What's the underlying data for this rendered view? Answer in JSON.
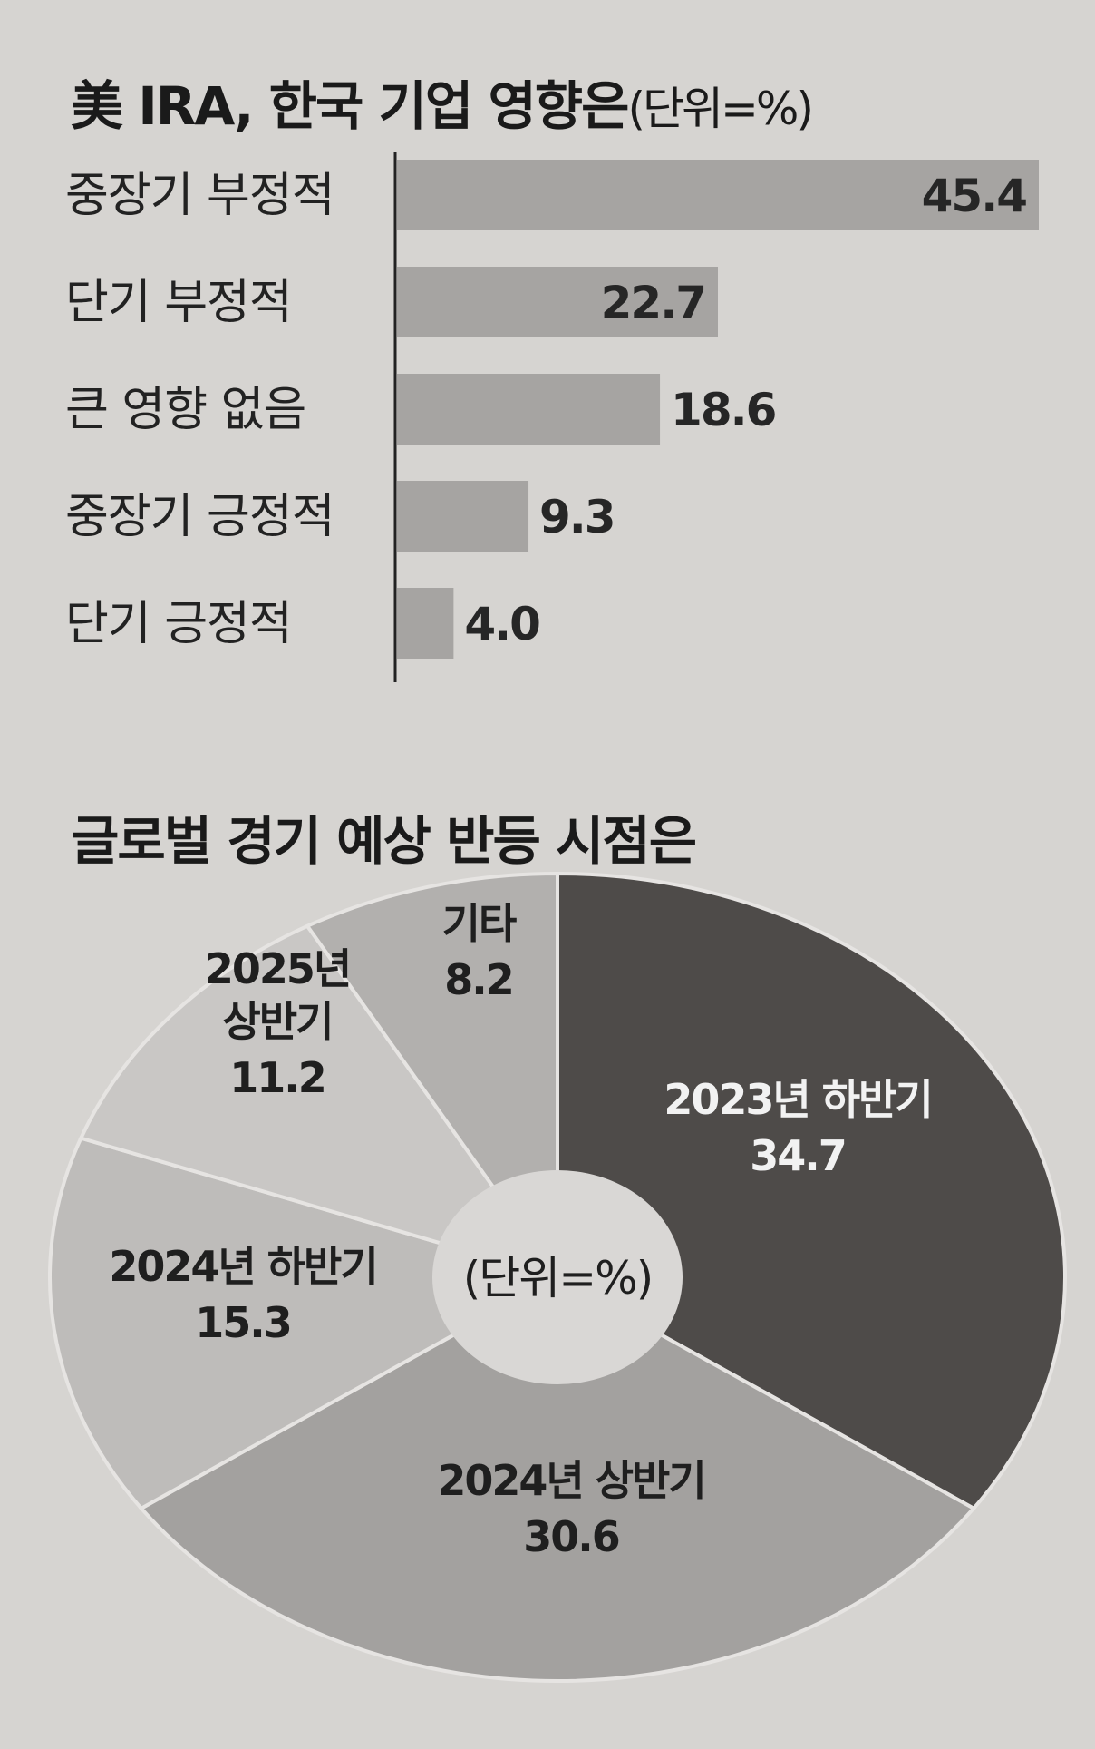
{
  "chart_data": [
    {
      "type": "bar",
      "orientation": "horizontal",
      "title": "美 IRA, 한국 기업 영향은",
      "unit_label": "(단위=%)",
      "categories": [
        "중장기 부정적",
        "단기 부정적",
        "큰 영향 없음",
        "중장기 긍정적",
        "단기 긍정적"
      ],
      "values": [
        45.4,
        22.7,
        18.6,
        9.3,
        4.0
      ],
      "value_labels": [
        "45.4",
        "22.7",
        "18.6",
        "9.3",
        "4.0"
      ],
      "xlim": [
        0,
        45.4
      ],
      "grid": false,
      "bar_color": "#a6a4a2"
    },
    {
      "type": "pie",
      "title": "글로벌 경기 예상 반등 시점은",
      "center_label": "(단위=%)",
      "slices": [
        {
          "label": "2023년 하반기",
          "value": 34.7,
          "value_label": "34.7",
          "color": "#4e4b49"
        },
        {
          "label": "2024년 상반기",
          "value": 30.6,
          "value_label": "30.6",
          "color": "#a3a19f"
        },
        {
          "label": "2024년 하반기",
          "value": 15.3,
          "value_label": "15.3",
          "color": "#bebcba"
        },
        {
          "label": "2025년 상반기",
          "value": 11.2,
          "value_label": "11.2",
          "color": "#c9c7c5"
        },
        {
          "label": "기타",
          "value": 8.2,
          "value_label": "8.2",
          "color": "#b2b0ae"
        }
      ]
    }
  ]
}
